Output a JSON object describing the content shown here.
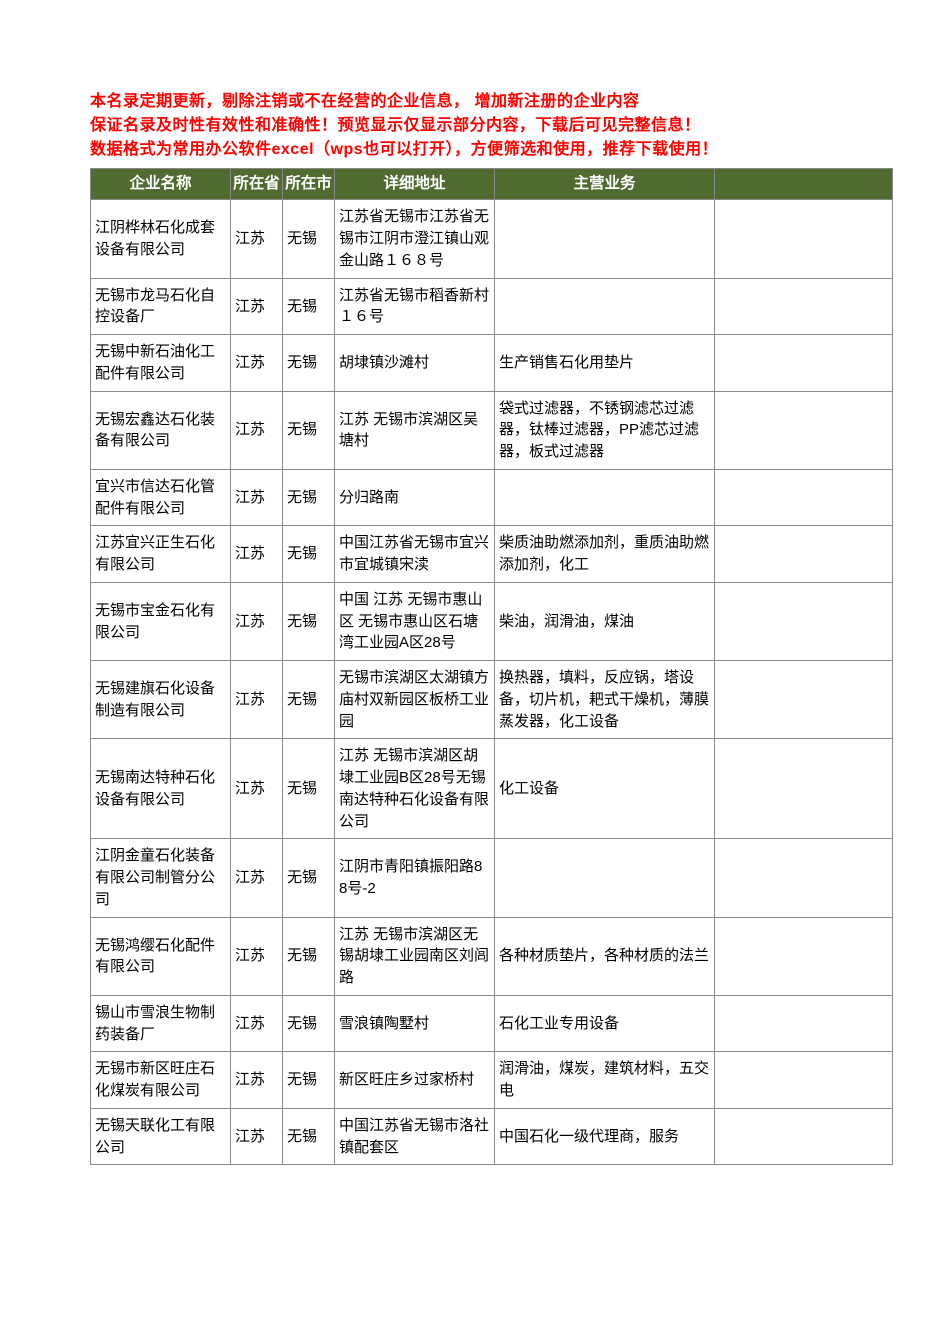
{
  "notice": [
    "本名录定期更新，剔除注销或不在经营的企业信息， 增加新注册的企业内容",
    "保证名录及时性有效性和准确性！预览显示仅显示部分内容，下载后可见完整信息！",
    "数据格式为常用办公软件excel（wps也可以打开），方便筛选和使用，推荐下载使用！"
  ],
  "table": {
    "header_bg": "#4f6b2f",
    "header_fg": "#ffffff",
    "border_color": "#8a8a8a",
    "notice_color": "#ff0000",
    "columns": [
      "企业名称",
      "所在省",
      "所在市",
      "详细地址",
      "主营业务",
      ""
    ],
    "rows": [
      {
        "name": "江阴桦林石化成套设备有限公司",
        "prov": "江苏",
        "city": "无锡",
        "addr": "江苏省无锡市江苏省无锡市江阴市澄江镇山观金山路１６８号",
        "biz": ""
      },
      {
        "name": "无锡市龙马石化自控设备厂",
        "prov": "江苏",
        "city": "无锡",
        "addr": "江苏省无锡市稻香新村１６号",
        "biz": ""
      },
      {
        "name": "无锡中新石油化工配件有限公司",
        "prov": "江苏",
        "city": "无锡",
        "addr": "胡埭镇沙滩村",
        "biz": "生产销售石化用垫片"
      },
      {
        "name": "无锡宏鑫达石化装备有限公司",
        "prov": "江苏",
        "city": "无锡",
        "addr": "江苏  无锡市滨湖区吴塘村",
        "biz": "袋式过滤器，不锈钢滤芯过滤器，钛棒过滤器，PP滤芯过滤器，板式过滤器"
      },
      {
        "name": "宜兴市信达石化管配件有限公司",
        "prov": "江苏",
        "city": "无锡",
        "addr": "分归路南",
        "biz": ""
      },
      {
        "name": "江苏宜兴正生石化有限公司",
        "prov": "江苏",
        "city": "无锡",
        "addr": "中国江苏省无锡市宜兴市宜城镇宋渎",
        "biz": "柴质油助燃添加剂，重质油助燃添加剂，化工"
      },
      {
        "name": "无锡市宝金石化有限公司",
        "prov": "江苏",
        "city": "无锡",
        "addr": "中国  江苏  无锡市惠山区  无锡市惠山区石塘湾工业园A区28号",
        "biz": "柴油，润滑油，煤油"
      },
      {
        "name": "无锡建旗石化设备制造有限公司",
        "prov": "江苏",
        "city": "无锡",
        "addr": "无锡市滨湖区太湖镇方庙村双新园区板桥工业园",
        "biz": "换热器，填料，反应锅，塔设备，切片机，耙式干燥机，薄膜蒸发器，化工设备"
      },
      {
        "name": "无锡南达特种石化设备有限公司",
        "prov": "江苏",
        "city": "无锡",
        "addr": "江苏  无锡市滨湖区胡埭工业园B区28号无锡南达特种石化设备有限公司",
        "biz": "化工设备"
      },
      {
        "name": "江阴金童石化装备有限公司制管分公司",
        "prov": "江苏",
        "city": "无锡",
        "addr": "江阴市青阳镇振阳路88号-2",
        "biz": ""
      },
      {
        "name": "无锡鸿缨石化配件有限公司",
        "prov": "江苏",
        "city": "无锡",
        "addr": "江苏  无锡市滨湖区无锡胡埭工业园南区刘闾路",
        "biz": "各种材质垫片，各种材质的法兰"
      },
      {
        "name": "锡山市雪浪生物制药装备厂",
        "prov": "江苏",
        "city": "无锡",
        "addr": "雪浪镇陶墅村",
        "biz": "石化工业专用设备"
      },
      {
        "name": "无锡市新区旺庄石化煤炭有限公司",
        "prov": "江苏",
        "city": "无锡",
        "addr": "新区旺庄乡过家桥村",
        "biz": "润滑油，煤炭，建筑材料，五交电"
      },
      {
        "name": "无锡天联化工有限公司",
        "prov": "江苏",
        "city": "无锡",
        "addr": "中国江苏省无锡市洛社镇配套区",
        "biz": "中国石化一级代理商，服务"
      }
    ]
  }
}
